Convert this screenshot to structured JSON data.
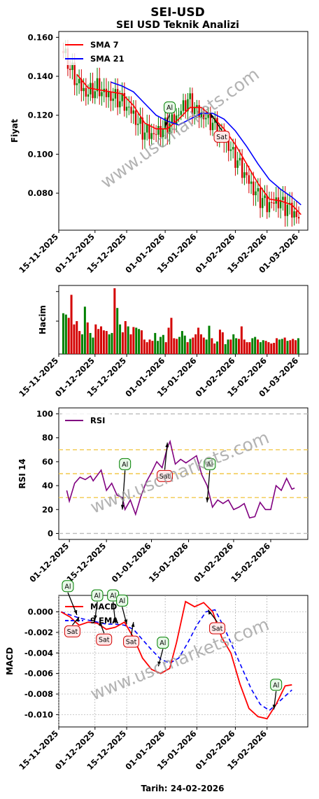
{
  "title": "SEI-USD",
  "subtitle": "SEI USD Teknik Analizi",
  "watermark": "www.uscmarkets.com",
  "footer": "Tarih: 24-02-2026",
  "colors": {
    "up": "#008000",
    "down": "#d40000",
    "sma7": "#ff0000",
    "sma21": "#0000ff",
    "rsi": "#800080",
    "macd": "#ff0000",
    "signal": "#0000ff",
    "buy": "#008000",
    "sell": "#d40000"
  },
  "chart_data": [
    {
      "id": "price",
      "type": "line",
      "ylabel": "Fiyat",
      "xlim": [
        "2025-11-15",
        "2026-03-05"
      ],
      "ylim": [
        0.061,
        0.163
      ],
      "xticks": [
        "15-11-2025",
        "01-12-2025",
        "15-12-2025",
        "01-01-2026",
        "15-01-2026",
        "01-02-2026",
        "15-02-2026",
        "01-03-2026"
      ],
      "yticks": [
        "0.080",
        "0.100",
        "0.120",
        "0.140",
        "0.160"
      ],
      "legend": {
        "position": "top-left",
        "items": [
          "SMA 7",
          "SMA 21"
        ]
      },
      "close_series": {
        "dates": [
          "2025-11-17",
          "2025-11-22",
          "2025-11-27",
          "2025-12-02",
          "2025-12-07",
          "2025-12-12",
          "2025-12-17",
          "2025-12-22",
          "2025-12-27",
          "2026-01-01",
          "2026-01-06",
          "2026-01-11",
          "2026-01-16",
          "2026-01-21",
          "2026-01-26",
          "2026-01-31",
          "2026-02-05",
          "2026-02-10",
          "2026-02-15",
          "2026-02-20",
          "2026-02-25",
          "2026-03-01"
        ],
        "values": [
          0.153,
          0.139,
          0.131,
          0.134,
          0.13,
          0.128,
          0.122,
          0.112,
          0.11,
          0.114,
          0.119,
          0.128,
          0.121,
          0.117,
          0.11,
          0.1,
          0.09,
          0.08,
          0.074,
          0.076,
          0.072,
          0.067
        ]
      },
      "series": [
        {
          "name": "SMA 7",
          "dates": [
            "2025-11-23",
            "2025-11-28",
            "2025-12-03",
            "2025-12-08",
            "2025-12-13",
            "2025-12-18",
            "2025-12-23",
            "2025-12-28",
            "2026-01-02",
            "2026-01-07",
            "2026-01-12",
            "2026-01-17",
            "2026-01-22",
            "2026-01-27",
            "2026-02-01",
            "2026-02-06",
            "2026-02-11",
            "2026-02-16",
            "2026-02-21",
            "2026-02-26",
            "2026-03-02"
          ],
          "values": [
            0.141,
            0.134,
            0.133,
            0.132,
            0.131,
            0.125,
            0.116,
            0.113,
            0.113,
            0.118,
            0.124,
            0.124,
            0.119,
            0.113,
            0.105,
            0.095,
            0.085,
            0.077,
            0.076,
            0.074,
            0.069
          ]
        },
        {
          "name": "SMA 21",
          "dates": [
            "2025-12-08",
            "2025-12-13",
            "2025-12-18",
            "2025-12-23",
            "2025-12-28",
            "2026-01-02",
            "2026-01-07",
            "2026-01-12",
            "2026-01-17",
            "2026-01-22",
            "2026-01-27",
            "2026-02-01",
            "2026-02-06",
            "2026-02-11",
            "2026-02-16",
            "2026-02-21",
            "2026-02-26",
            "2026-03-02"
          ],
          "values": [
            0.137,
            0.135,
            0.132,
            0.126,
            0.12,
            0.117,
            0.115,
            0.118,
            0.121,
            0.121,
            0.118,
            0.112,
            0.104,
            0.095,
            0.087,
            0.082,
            0.078,
            0.074
          ]
        }
      ],
      "annotations": [
        {
          "label": "Al",
          "x": "2026-01-01",
          "y": 0.114,
          "text_x": "2026-01-03",
          "text_y": 0.124
        },
        {
          "label": "Sat",
          "x": "2026-01-21",
          "y": 0.121,
          "text_x": "2026-01-26",
          "text_y": 0.109
        }
      ]
    },
    {
      "id": "volume",
      "type": "bar",
      "ylabel": "Hacim",
      "xlim": [
        "2025-11-15",
        "2026-03-05"
      ],
      "ylim": [
        0,
        1.0
      ],
      "xticks": [
        "15-11-2025",
        "01-12-2025",
        "15-12-2025",
        "01-01-2026",
        "15-01-2026",
        "01-02-2026",
        "15-02-2026",
        "01-03-2026"
      ],
      "values_relative": [
        0.62,
        0.6,
        0.55,
        0.9,
        0.45,
        0.5,
        0.35,
        0.3,
        0.72,
        0.48,
        0.32,
        0.25,
        0.45,
        0.38,
        0.42,
        0.36,
        0.35,
        0.3,
        0.32,
        1.0,
        0.7,
        0.45,
        0.33,
        0.5,
        0.42,
        0.3,
        0.41,
        0.4,
        0.38,
        0.36,
        0.22,
        0.18,
        0.22,
        0.2,
        0.32,
        0.2,
        0.26,
        0.29,
        0.18,
        0.4,
        0.55,
        0.24,
        0.23,
        0.26,
        0.35,
        0.28,
        0.18,
        0.23,
        0.25,
        0.3,
        0.4,
        0.3,
        0.25,
        0.22,
        0.43,
        0.24,
        0.16,
        0.19,
        0.37,
        0.33,
        0.15,
        0.22,
        0.22,
        0.3,
        0.24,
        0.23,
        0.42,
        0.22,
        0.18,
        0.18,
        0.24,
        0.26,
        0.22,
        0.18,
        0.21,
        0.2,
        0.18,
        0.16,
        0.17,
        0.24,
        0.22,
        0.23,
        0.25,
        0.2,
        0.21,
        0.23,
        0.21,
        0.24
      ]
    },
    {
      "id": "rsi",
      "type": "line",
      "ylabel": "RSI 14",
      "xlim": [
        "2025-11-27",
        "2026-03-01"
      ],
      "ylim": [
        -5,
        105
      ],
      "xticks": [
        "01-12-2025",
        "15-12-2025",
        "01-01-2026",
        "15-01-2026",
        "01-02-2026",
        "15-02-2026"
      ],
      "yticks": [
        "0",
        "20",
        "40",
        "60",
        "80",
        "100"
      ],
      "hlines": [
        0,
        30,
        50,
        70,
        100
      ],
      "legend": {
        "position": "top-left",
        "items": [
          "RSI"
        ]
      },
      "series": [
        {
          "name": "RSI",
          "dates": [
            "2025-11-30",
            "2025-12-01",
            "2025-12-03",
            "2025-12-05",
            "2025-12-07",
            "2025-12-09",
            "2025-12-10",
            "2025-12-11",
            "2025-12-13",
            "2025-12-15",
            "2025-12-17",
            "2025-12-19",
            "2025-12-21",
            "2025-12-22",
            "2025-12-24",
            "2025-12-26",
            "2025-12-28",
            "2025-12-30",
            "2026-01-01",
            "2026-01-03",
            "2026-01-05",
            "2026-01-07",
            "2026-01-08",
            "2026-01-10",
            "2026-01-12",
            "2026-01-14",
            "2026-01-16",
            "2026-01-18",
            "2026-01-20",
            "2026-01-22",
            "2026-01-24",
            "2026-01-26",
            "2026-01-28",
            "2026-01-30",
            "2026-02-01",
            "2026-02-03",
            "2026-02-05",
            "2026-02-07",
            "2026-02-09",
            "2026-02-11",
            "2026-02-13",
            "2026-02-15",
            "2026-02-17",
            "2026-02-19",
            "2026-02-21",
            "2026-02-23",
            "2026-02-24"
          ],
          "values": [
            36,
            27,
            42,
            47,
            45,
            48,
            44,
            47,
            53,
            36,
            42,
            32,
            30,
            20,
            28,
            16,
            31,
            43,
            51,
            60,
            55,
            72,
            77,
            58,
            62,
            59,
            62,
            65,
            49,
            40,
            22,
            28,
            25,
            28,
            20,
            22,
            25,
            13,
            14,
            26,
            20,
            20,
            40,
            36,
            46,
            37,
            38
          ]
        }
      ],
      "annotations": [
        {
          "label": "Al",
          "x": "2025-12-21",
          "y": 20,
          "text_x": "2025-12-22",
          "text_y": 58
        },
        {
          "label": "Sat",
          "x": "2026-01-07",
          "y": 76,
          "text_x": "2026-01-06",
          "text_y": 48
        },
        {
          "label": "Al",
          "x": "2026-01-22",
          "y": 26,
          "text_x": "2026-01-23",
          "text_y": 58
        }
      ]
    },
    {
      "id": "macd",
      "type": "line",
      "ylabel": "MACD",
      "xlim": [
        "2025-11-15",
        "2026-03-05"
      ],
      "ylim": [
        -0.0112,
        0.0016
      ],
      "xticks": [
        "15-11-2025",
        "01-12-2025",
        "15-12-2025",
        "01-01-2026",
        "15-01-2026",
        "01-02-2026",
        "15-02-2026"
      ],
      "yticks": [
        "0.000",
        "-0.002",
        "-0.004",
        "-0.006",
        "-0.008",
        "-0.010"
      ],
      "legend": {
        "position": "top-left",
        "items": [
          "MACD",
          "9 EMA"
        ]
      },
      "series": [
        {
          "name": "MACD",
          "dates": [
            "2025-11-16",
            "2025-11-20",
            "2025-11-24",
            "2025-11-28",
            "2025-12-02",
            "2025-12-06",
            "2025-12-10",
            "2025-12-14",
            "2025-12-18",
            "2025-12-22",
            "2025-12-26",
            "2025-12-30",
            "2026-01-03",
            "2026-01-06",
            "2026-01-10",
            "2026-01-14",
            "2026-01-18",
            "2026-01-22",
            "2026-01-26",
            "2026-01-30",
            "2026-02-03",
            "2026-02-07",
            "2026-02-11",
            "2026-02-15",
            "2026-02-19",
            "2026-02-23",
            "2026-02-26"
          ],
          "values": [
            0.0,
            -0.0005,
            -0.0013,
            -0.001,
            -0.0011,
            -0.0017,
            -0.0015,
            -0.001,
            -0.0025,
            -0.0045,
            -0.0056,
            -0.006,
            -0.0055,
            -0.003,
            0.001,
            0.0005,
            0.0009,
            0.0,
            -0.0025,
            -0.004,
            -0.007,
            -0.0094,
            -0.0102,
            -0.0104,
            -0.009,
            -0.0072,
            -0.0071
          ]
        },
        {
          "name": "9 EMA",
          "dates": [
            "2025-11-16",
            "2025-11-20",
            "2025-11-24",
            "2025-11-28",
            "2025-12-02",
            "2025-12-06",
            "2025-12-10",
            "2025-12-14",
            "2025-12-18",
            "2025-12-22",
            "2025-12-26",
            "2025-12-30",
            "2026-01-03",
            "2026-01-07",
            "2026-01-11",
            "2026-01-15",
            "2026-01-19",
            "2026-01-23",
            "2026-01-27",
            "2026-01-31",
            "2026-02-04",
            "2026-02-08",
            "2026-02-12",
            "2026-02-16",
            "2026-02-20",
            "2026-02-24",
            "2026-02-26"
          ],
          "values": [
            0.0,
            -0.0003,
            -0.0006,
            -0.0008,
            -0.001,
            -0.0012,
            -0.0012,
            -0.0013,
            -0.0017,
            -0.0027,
            -0.0037,
            -0.0046,
            -0.005,
            -0.0045,
            -0.003,
            -0.0013,
            0.0,
            0.0002,
            -0.0015,
            -0.0035,
            -0.0055,
            -0.0075,
            -0.009,
            -0.0096,
            -0.0088,
            -0.008,
            -0.0076
          ]
        }
      ],
      "annotations": [
        {
          "label": "Al",
          "x": "2025-11-23",
          "y": -0.0003,
          "text_x": "2025-11-19",
          "text_y": 0.0025
        },
        {
          "label": "Sat",
          "x": "2025-11-24",
          "y": -0.0005,
          "text_x": "2025-11-21",
          "text_y": -0.0019
        },
        {
          "label": "Al",
          "x": "2025-12-01",
          "y": -0.0008,
          "text_x": "2025-12-02",
          "text_y": 0.0016
        },
        {
          "label": "Sat",
          "x": "2025-12-03",
          "y": -0.0009,
          "text_x": "2025-12-05",
          "text_y": -0.0027
        },
        {
          "label": "Al",
          "x": "2025-12-10",
          "y": -0.0011,
          "text_x": "2025-12-09",
          "text_y": 0.0016
        },
        {
          "label": "Al",
          "x": "2025-12-15",
          "y": -0.0012,
          "text_x": "2025-12-13",
          "text_y": 0.0011
        },
        {
          "label": "Sat",
          "x": "2025-12-18",
          "y": -0.001,
          "text_x": "2025-12-17",
          "text_y": -0.0029
        },
        {
          "label": "Al",
          "x": "2025-12-29",
          "y": -0.0053,
          "text_x": "2025-12-31",
          "text_y": -0.003
        },
        {
          "label": "Sat",
          "x": "2026-01-20",
          "y": 0.0002,
          "text_x": "2026-01-24",
          "text_y": -0.0016
        },
        {
          "label": "Al",
          "x": "2026-02-18",
          "y": -0.0095,
          "text_x": "2026-02-19",
          "text_y": -0.0071
        }
      ]
    }
  ]
}
